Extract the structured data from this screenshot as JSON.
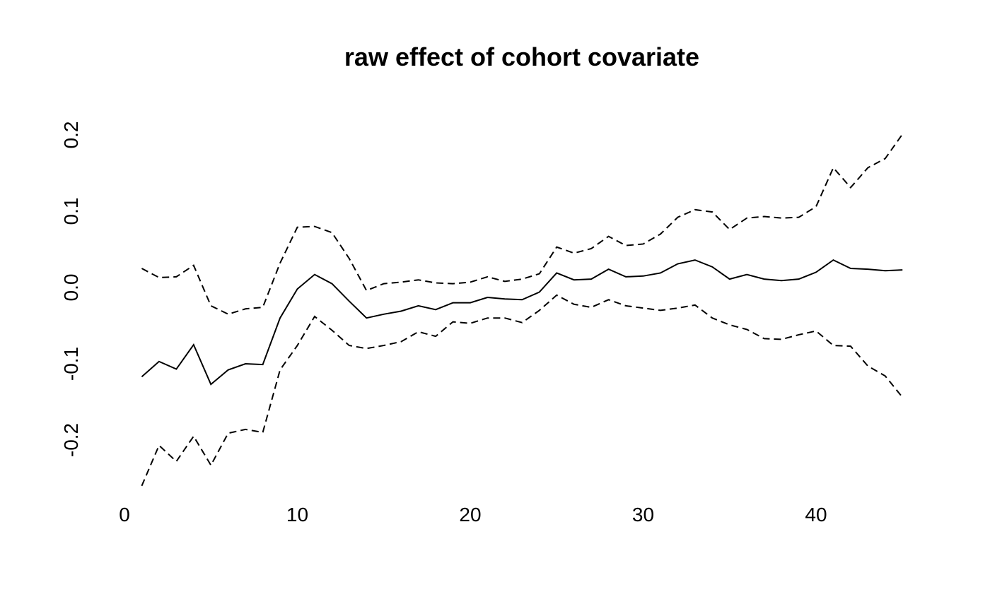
{
  "chart_data": {
    "type": "line",
    "title": "raw effect of cohort covariate",
    "xlabel": "",
    "ylabel": "",
    "xlim": [
      0,
      45
    ],
    "ylim": [
      -0.3,
      0.25
    ],
    "x_ticks": [
      0,
      10,
      20,
      30,
      40
    ],
    "x_tick_labels": [
      "0",
      "10",
      "20",
      "30",
      "40"
    ],
    "y_ticks": [
      -0.2,
      -0.1,
      0.0,
      0.1,
      0.2
    ],
    "y_tick_labels": [
      "-0.2",
      "-0.1",
      "0.0",
      "0.1",
      "0.2"
    ],
    "grid": false,
    "legend": "none",
    "x": [
      1,
      2,
      3,
      4,
      5,
      6,
      7,
      8,
      9,
      10,
      11,
      12,
      13,
      14,
      15,
      16,
      17,
      18,
      19,
      20,
      21,
      22,
      23,
      24,
      25,
      26,
      27,
      28,
      29,
      30,
      31,
      32,
      33,
      34,
      35,
      36,
      37,
      38,
      39,
      40,
      41,
      42,
      43,
      44,
      45
    ],
    "series": [
      {
        "style": "dashed",
        "values": [
          0.025,
          0.013,
          0.014,
          0.029,
          -0.024,
          -0.035,
          -0.028,
          -0.026,
          0.032,
          0.079,
          0.08,
          0.072,
          0.038,
          -0.004,
          0.005,
          0.007,
          0.01,
          0.006,
          0.005,
          0.007,
          0.014,
          0.008,
          0.011,
          0.018,
          0.053,
          0.045,
          0.051,
          0.067,
          0.055,
          0.057,
          0.07,
          0.092,
          0.102,
          0.099,
          0.076,
          0.091,
          0.093,
          0.091,
          0.092,
          0.106,
          0.157,
          0.131,
          0.157,
          0.169,
          0.201
        ]
      },
      {
        "style": "solid",
        "values": [
          -0.117,
          -0.097,
          -0.107,
          -0.075,
          -0.127,
          -0.108,
          -0.1,
          -0.101,
          -0.04,
          -0.002,
          0.017,
          0.005,
          -0.018,
          -0.04,
          -0.035,
          -0.031,
          -0.024,
          -0.029,
          -0.02,
          -0.02,
          -0.013,
          -0.015,
          -0.016,
          -0.006,
          0.019,
          0.01,
          0.011,
          0.024,
          0.014,
          0.015,
          0.019,
          0.031,
          0.036,
          0.027,
          0.011,
          0.017,
          0.011,
          0.009,
          0.011,
          0.02,
          0.036,
          0.025,
          0.024,
          0.022,
          0.023
        ]
      },
      {
        "style": "dashed",
        "values": [
          -0.26,
          -0.207,
          -0.228,
          -0.195,
          -0.233,
          -0.191,
          -0.186,
          -0.19,
          -0.108,
          -0.076,
          -0.038,
          -0.056,
          -0.076,
          -0.08,
          -0.076,
          -0.071,
          -0.058,
          -0.064,
          -0.045,
          -0.047,
          -0.04,
          -0.04,
          -0.046,
          -0.03,
          -0.01,
          -0.022,
          -0.026,
          -0.016,
          -0.024,
          -0.027,
          -0.03,
          -0.027,
          -0.023,
          -0.04,
          -0.049,
          -0.055,
          -0.067,
          -0.068,
          -0.062,
          -0.057,
          -0.076,
          -0.077,
          -0.103,
          -0.116,
          -0.144
        ]
      }
    ]
  }
}
